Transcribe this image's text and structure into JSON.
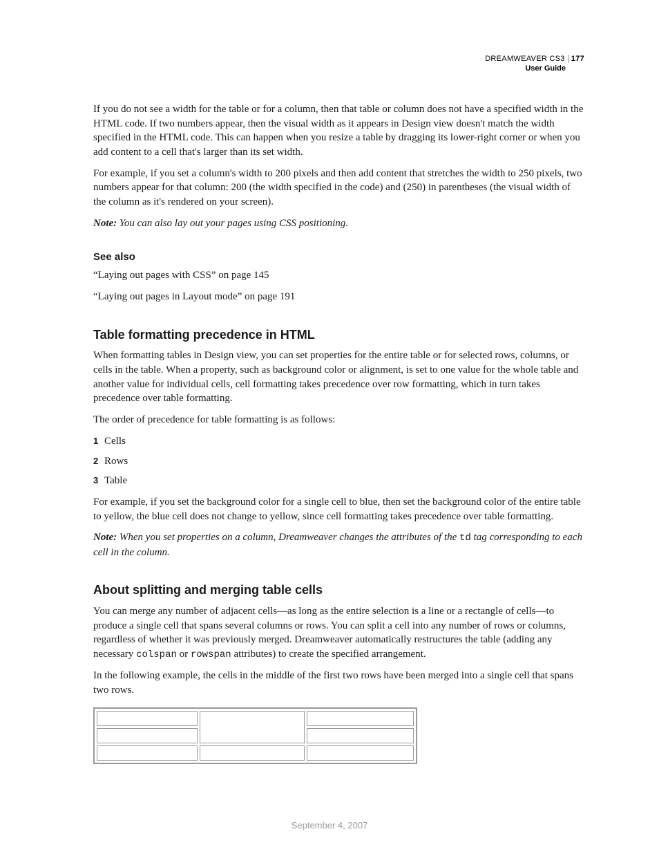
{
  "header": {
    "product": "DREAMWEAVER CS3",
    "page_number": "177",
    "subtitle": "User Guide"
  },
  "intro": {
    "para1": "If you do not see a width for the table or for a column, then that table or column does not have a specified width in the HTML code. If two numbers appear, then the visual width as it appears in Design view doesn't match the width specified in the HTML code. This can happen when you resize a table by dragging its lower-right corner or when you add content to a cell that's larger than its set width.",
    "para2": "For example, if you set a column's width to 200 pixels and then add content that stretches the width to 250 pixels, two numbers appear for that column: 200 (the width specified in the code) and (250) in parentheses (the visual width of the column as it's rendered on your screen).",
    "note_label": "Note:",
    "note_text": " You can also lay out your pages using CSS positioning."
  },
  "see_also": {
    "heading": "See also",
    "items": [
      "“Laying out pages with CSS” on page 145",
      "“Laying out pages in Layout mode” on page 191"
    ]
  },
  "section1": {
    "heading": "Table formatting precedence in HTML",
    "para1": "When formatting tables in Design view, you can set properties for the entire table or for selected rows, columns, or cells in the table. When a property, such as background color or alignment, is set to one value for the whole table and another value for individual cells, cell formatting takes precedence over row formatting, which in turn takes precedence over table formatting.",
    "para2": "The order of precedence for table formatting is as follows:",
    "list": [
      "Cells",
      "Rows",
      "Table"
    ],
    "para3": "For example, if you set the background color for a single cell to blue, then set the background color of the entire table to yellow, the blue cell does not change to yellow, since cell formatting takes precedence over table formatting.",
    "note_label": "Note:",
    "note_text_a": " When you set properties on a column, Dreamweaver changes the attributes of the ",
    "note_code": "td",
    "note_text_b": " tag corresponding to each cell in the column."
  },
  "section2": {
    "heading": "About splitting and merging table cells",
    "para1_a": "You can merge any number of adjacent cells—as long as the entire selection is a line or a rectangle of cells—to produce a single cell that spans several columns or rows. You can split a cell into any number of rows or columns, regardless of whether it was previously merged. Dreamweaver automatically restructures the table (adding any necessary ",
    "code1": "colspan",
    "para1_b": " or ",
    "code2": "rowspan",
    "para1_c": " attributes) to create the specified arrangement.",
    "para2": "In the following example, the cells in the middle of the first two rows have been merged into a single cell that spans two rows."
  },
  "example_table": {
    "cols": 3,
    "rows": 3,
    "merged": {
      "row": 0,
      "col": 1,
      "rowspan": 2
    },
    "border_color": "#9a9a9a",
    "cell_bg": "#ffffff"
  },
  "footer": {
    "date": "September 4, 2007"
  }
}
